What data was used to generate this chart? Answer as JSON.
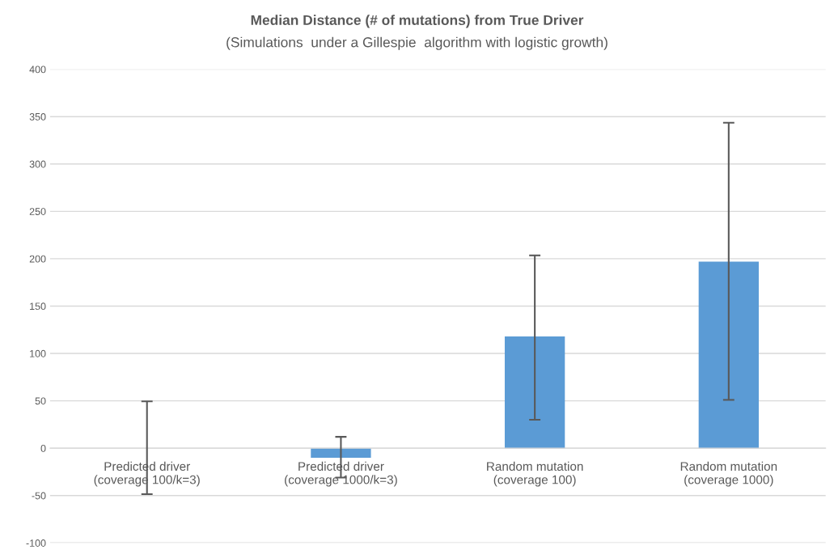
{
  "chart_data": {
    "type": "bar",
    "title": "Median Distance (# of mutations) from True Driver",
    "subtitle": "(Simulations  under a Gillespie  algorithm with logistic growth)",
    "categories": [
      "Predicted driver\n(coverage 100/k=3)",
      "Predicted driver\n(coverage 1000/k=3)",
      "Random mutation\n(coverage 100)",
      "Random mutation\n(coverage 1000)"
    ],
    "values": [
      0,
      -10,
      118,
      197
    ],
    "errors": [
      [
        -48.5,
        49.5
      ],
      [
        -31,
        12
      ],
      [
        30,
        203.5
      ],
      [
        51,
        343.5
      ]
    ],
    "color": "#5b9bd5",
    "ylim": [
      -100,
      400
    ],
    "yticks": [
      -100,
      -50,
      0,
      50,
      100,
      150,
      200,
      250,
      300,
      350,
      400
    ],
    "grid": "y",
    "legend": false
  }
}
